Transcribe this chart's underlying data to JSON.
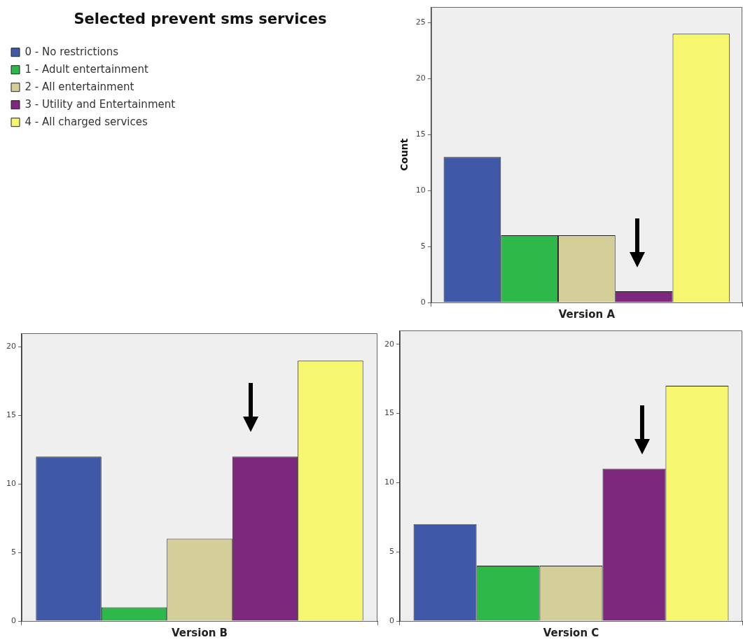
{
  "chart_data": [
    {
      "type": "bar",
      "categories": [
        "Version A"
      ],
      "ylabel": "Count",
      "legend_title": "Selected prevent sms services",
      "legend": "left",
      "ylim": [
        0,
        26.4
      ],
      "yticks": [
        0,
        5,
        10,
        15,
        20,
        25
      ],
      "series": [
        {
          "name": "0 - No restrictions",
          "color": "#3f58a8",
          "values": [
            13
          ]
        },
        {
          "name": "1 - Adult entertainment",
          "color": "#2fb84a",
          "values": [
            6
          ]
        },
        {
          "name": "2 - All entertainment",
          "color": "#d4cf98",
          "values": [
            6
          ]
        },
        {
          "name": "3 - Utility and Entertainment",
          "color": "#7d287d",
          "values": [
            1
          ]
        },
        {
          "name": "4 - All charged services",
          "color": "#f7f76f",
          "values": [
            24
          ]
        }
      ]
    },
    {
      "type": "bar",
      "categories": [
        "Version B"
      ],
      "ylim": [
        0,
        21
      ],
      "yticks": [
        0,
        5,
        10,
        15,
        20
      ],
      "series": [
        {
          "color": "#3f58a8",
          "values": [
            12
          ]
        },
        {
          "color": "#2fb84a",
          "values": [
            1
          ]
        },
        {
          "color": "#d4cf98",
          "values": [
            6
          ]
        },
        {
          "color": "#7d287d",
          "values": [
            12
          ]
        },
        {
          "color": "#f7f76f",
          "values": [
            19
          ]
        }
      ]
    },
    {
      "type": "bar",
      "categories": [
        "Version C"
      ],
      "ylim": [
        0,
        21
      ],
      "yticks": [
        0,
        5,
        10,
        15,
        20
      ],
      "series": [
        {
          "color": "#3f58a8",
          "values": [
            7
          ]
        },
        {
          "color": "#2fb84a",
          "values": [
            4
          ]
        },
        {
          "color": "#d4cf98",
          "values": [
            4
          ]
        },
        {
          "color": "#7d287d",
          "values": [
            11
          ]
        },
        {
          "color": "#f7f76f",
          "values": [
            17
          ]
        }
      ]
    }
  ]
}
